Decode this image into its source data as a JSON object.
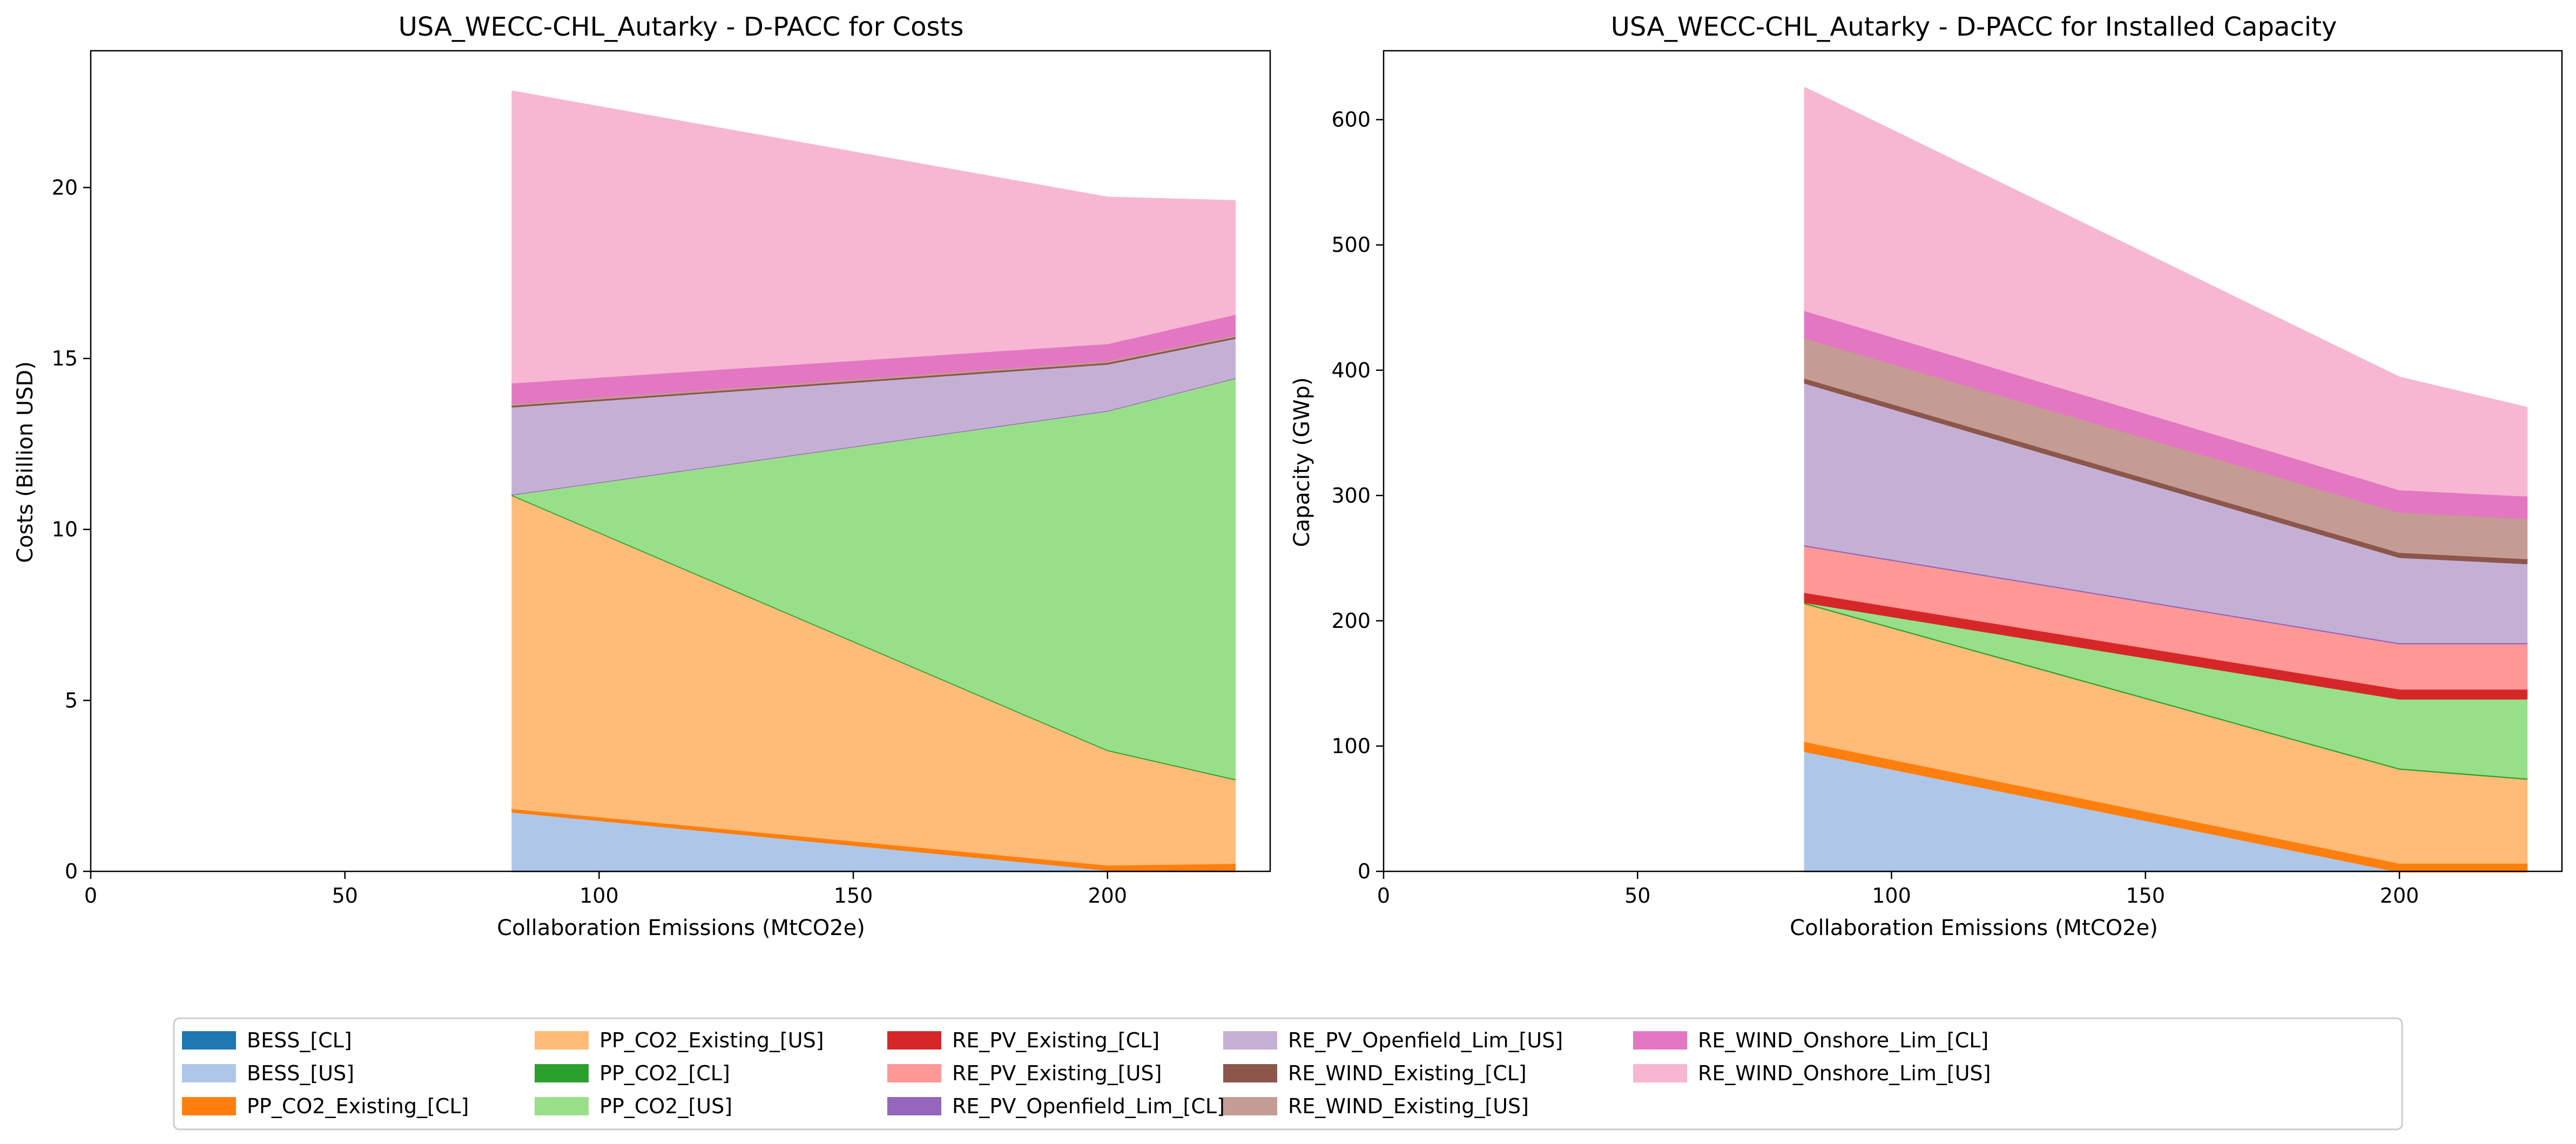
{
  "chart_data": [
    {
      "type": "area",
      "title": "USA_WECC-CHL_Autarky - D-PACC for Costs",
      "xlabel": "Collaboration Emissions (MtCO2e)",
      "ylabel": "Costs (Billion USD)",
      "xlim": [
        0,
        232
      ],
      "ylim": [
        0,
        24
      ],
      "xticks": [
        0,
        50,
        100,
        150,
        200
      ],
      "yticks": [
        0,
        5,
        10,
        15,
        20
      ],
      "grid": false,
      "stacked": true,
      "x": [
        83,
        200,
        225
      ],
      "series": [
        {
          "name": "BESS_[CL]",
          "values": [
            0,
            0,
            0
          ]
        },
        {
          "name": "BESS_[US]",
          "values": [
            1.75,
            0.05,
            0.05
          ]
        },
        {
          "name": "PP_CO2_Existing_[CL]",
          "values": [
            0.1,
            0.15,
            0.2
          ]
        },
        {
          "name": "PP_CO2_Existing_[US]",
          "values": [
            9.15,
            3.35,
            2.45
          ]
        },
        {
          "name": "PP_CO2_[CL]",
          "values": [
            0.03,
            0.03,
            0.03
          ]
        },
        {
          "name": "PP_CO2_[US]",
          "values": [
            0,
            9.9,
            11.7
          ]
        },
        {
          "name": "RE_PV_Existing_[CL]",
          "values": [
            0,
            0,
            0
          ]
        },
        {
          "name": "RE_PV_Existing_[US]",
          "values": [
            0,
            0,
            0
          ]
        },
        {
          "name": "RE_PV_Openfield_Lim_[CL]",
          "values": [
            0.02,
            0.02,
            0.02
          ]
        },
        {
          "name": "RE_PV_Openfield_Lim_[US]",
          "values": [
            2.55,
            1.35,
            1.15
          ]
        },
        {
          "name": "RE_WIND_Existing_[CL]",
          "values": [
            0.05,
            0.05,
            0.05
          ]
        },
        {
          "name": "RE_WIND_Existing_[US]",
          "values": [
            0.05,
            0.05,
            0.05
          ]
        },
        {
          "name": "RE_WIND_Onshore_Lim_[CL]",
          "values": [
            0.6,
            0.5,
            0.6
          ]
        },
        {
          "name": "RE_WIND_Onshore_Lim_[US]",
          "values": [
            8.5,
            4.25,
            3.3
          ]
        }
      ]
    },
    {
      "type": "area",
      "title": "USA_WECC-CHL_Autarky - D-PACC for Installed Capacity",
      "xlabel": "Collaboration Emissions (MtCO2e)",
      "ylabel": "Capacity (GWp)",
      "xlim": [
        0,
        232
      ],
      "ylim": [
        0,
        655
      ],
      "xticks": [
        0,
        50,
        100,
        150,
        200
      ],
      "yticks": [
        0,
        100,
        200,
        300,
        400,
        500,
        600
      ],
      "grid": false,
      "stacked": true,
      "x": [
        83,
        200,
        225
      ],
      "series": [
        {
          "name": "BESS_[CL]",
          "values": [
            0,
            0,
            0
          ]
        },
        {
          "name": "BESS_[US]",
          "values": [
            96,
            0,
            0
          ]
        },
        {
          "name": "PP_CO2_Existing_[CL]",
          "values": [
            8,
            7,
            7
          ]
        },
        {
          "name": "PP_CO2_Existing_[US]",
          "values": [
            110,
            75,
            67
          ]
        },
        {
          "name": "PP_CO2_[CL]",
          "values": [
            1,
            1,
            1
          ]
        },
        {
          "name": "PP_CO2_[US]",
          "values": [
            0,
            55,
            63
          ]
        },
        {
          "name": "RE_PV_Existing_[CL]",
          "values": [
            8,
            8,
            8
          ]
        },
        {
          "name": "RE_PV_Existing_[US]",
          "values": [
            37,
            36,
            36
          ]
        },
        {
          "name": "RE_PV_Openfield_Lim_[CL]",
          "values": [
            1,
            1,
            1
          ]
        },
        {
          "name": "RE_PV_Openfield_Lim_[US]",
          "values": [
            129,
            68,
            63
          ]
        },
        {
          "name": "RE_WIND_Existing_[CL]",
          "values": [
            4,
            4,
            4
          ]
        },
        {
          "name": "RE_WIND_Existing_[US]",
          "values": [
            32,
            32,
            32
          ]
        },
        {
          "name": "RE_WIND_Onshore_Lim_[CL]",
          "values": [
            22,
            18,
            18
          ]
        },
        {
          "name": "RE_WIND_Onshore_Lim_[US]",
          "values": [
            177,
            89,
            70
          ]
        }
      ]
    }
  ],
  "legend": {
    "placement": "bottom",
    "columns": 6,
    "entries": [
      {
        "label": "BESS_[CL]",
        "color": "#1f77b4"
      },
      {
        "label": "BESS_[US]",
        "color": "#aec7e8"
      },
      {
        "label": "PP_CO2_Existing_[CL]",
        "color": "#ff7f0e"
      },
      {
        "label": "PP_CO2_Existing_[US]",
        "color": "#ffbb78"
      },
      {
        "label": "PP_CO2_[CL]",
        "color": "#2ca02c"
      },
      {
        "label": "PP_CO2_[US]",
        "color": "#98df8a"
      },
      {
        "label": "RE_PV_Existing_[CL]",
        "color": "#d62728"
      },
      {
        "label": "RE_PV_Existing_[US]",
        "color": "#ff9896"
      },
      {
        "label": "RE_PV_Openfield_Lim_[CL]",
        "color": "#9467bd"
      },
      {
        "label": "RE_PV_Openfield_Lim_[US]",
        "color": "#c5b0d5"
      },
      {
        "label": "RE_WIND_Existing_[CL]",
        "color": "#8c564b"
      },
      {
        "label": "RE_WIND_Existing_[US]",
        "color": "#c49c94"
      },
      {
        "label": "RE_WIND_Onshore_Lim_[CL]",
        "color": "#e377c2"
      },
      {
        "label": "RE_WIND_Onshore_Lim_[US]",
        "color": "#f7b6d2"
      }
    ]
  }
}
